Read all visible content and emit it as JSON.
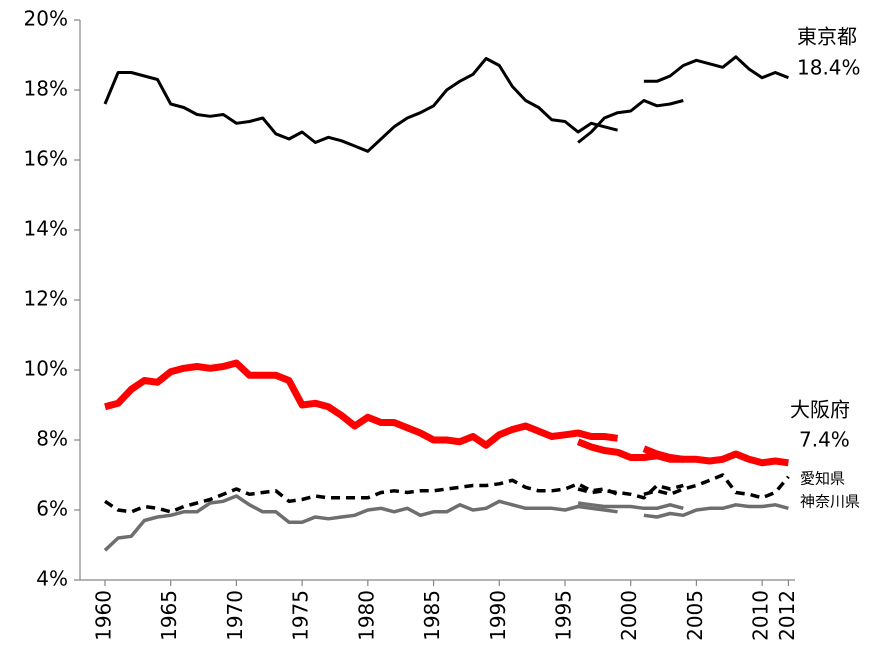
{
  "chart_data": {
    "type": "line",
    "xlim": [
      1958.1,
      2012.5
    ],
    "ylim": [
      4,
      20
    ],
    "xticks": [
      1960,
      1965,
      1970,
      1975,
      1980,
      1985,
      1990,
      1995,
      2000,
      2005,
      2010,
      2012
    ],
    "yticks": [
      {
        "value": 4,
        "label": "4%"
      },
      {
        "value": 6,
        "label": "6%"
      },
      {
        "value": 8,
        "label": "8%"
      },
      {
        "value": 10,
        "label": "10%"
      },
      {
        "value": 12,
        "label": "12%"
      },
      {
        "value": 14,
        "label": "14%"
      },
      {
        "value": 16,
        "label": "16%"
      },
      {
        "value": 18,
        "label": "18%"
      },
      {
        "value": 20,
        "label": "20%"
      }
    ],
    "grid": false,
    "annotations": [
      "18.4%",
      "7.4%"
    ],
    "series": [
      {
        "color": "#6e6e6e",
        "width": 3.5,
        "dash": false,
        "x": [
          1960,
          1961,
          1962,
          1963,
          1964,
          1965,
          1966,
          1967,
          1968,
          1969,
          1970,
          1971,
          1972,
          1973,
          1974,
          1975,
          1976,
          1977,
          1978,
          1979,
          1980,
          1981,
          1982,
          1983,
          1984,
          1985,
          1986,
          1987,
          1988,
          1989,
          1990,
          1991,
          1992,
          1993,
          1994,
          1995,
          1996,
          1997,
          1998,
          1999
        ],
        "values": [
          4.85,
          5.2,
          5.25,
          5.7,
          5.8,
          5.85,
          5.95,
          5.95,
          6.2,
          6.25,
          6.4,
          6.15,
          5.95,
          5.95,
          5.65,
          5.65,
          5.8,
          5.75,
          5.8,
          5.85,
          6.0,
          6.05,
          5.95,
          6.05,
          5.85,
          5.95,
          5.95,
          6.15,
          6.0,
          6.05,
          6.25,
          6.15,
          6.05,
          6.05,
          6.05,
          6.0,
          6.1,
          6.05,
          6.0,
          5.95
        ]
      },
      {
        "color": "#6e6e6e",
        "width": 3.5,
        "dash": false,
        "x": [
          1996,
          1997,
          1998,
          1999,
          2000,
          2001,
          2002,
          2003,
          2004
        ],
        "values": [
          6.2,
          6.15,
          6.1,
          6.1,
          6.1,
          6.05,
          6.05,
          6.15,
          6.05
        ]
      },
      {
        "name": "神奈川県",
        "color": "#6e6e6e",
        "width": 3.5,
        "dash": false,
        "x": [
          2001,
          2002,
          2003,
          2004,
          2005,
          2006,
          2007,
          2008,
          2009,
          2010,
          2011,
          2012
        ],
        "values": [
          5.85,
          5.8,
          5.9,
          5.85,
          6.0,
          6.05,
          6.05,
          6.15,
          6.1,
          6.1,
          6.15,
          6.05
        ]
      },
      {
        "color": "#000000",
        "width": 3.5,
        "dash": true,
        "x": [
          1960,
          1961,
          1962,
          1963,
          1964,
          1965,
          1966,
          1967,
          1968,
          1969,
          1970,
          1971,
          1972,
          1973,
          1974,
          1975,
          1976,
          1977,
          1978,
          1979,
          1980,
          1981,
          1982,
          1983,
          1984,
          1985,
          1986,
          1987,
          1988,
          1989,
          1990,
          1991,
          1992,
          1993,
          1994,
          1995,
          1996,
          1997,
          1998,
          1999
        ],
        "values": [
          6.25,
          6.0,
          5.95,
          6.1,
          6.05,
          5.95,
          6.1,
          6.2,
          6.3,
          6.45,
          6.6,
          6.45,
          6.5,
          6.55,
          6.25,
          6.3,
          6.4,
          6.35,
          6.35,
          6.35,
          6.35,
          6.5,
          6.55,
          6.5,
          6.55,
          6.55,
          6.6,
          6.65,
          6.7,
          6.7,
          6.75,
          6.85,
          6.65,
          6.55,
          6.55,
          6.6,
          6.75,
          6.55,
          6.6,
          6.45
        ]
      },
      {
        "color": "#000000",
        "width": 3.5,
        "dash": true,
        "x": [
          1996,
          1997,
          1998,
          1999,
          2000,
          2001,
          2002,
          2003,
          2004
        ],
        "values": [
          6.6,
          6.5,
          6.55,
          6.5,
          6.45,
          6.35,
          6.7,
          6.6,
          6.7
        ]
      },
      {
        "name": "愛知県",
        "color": "#000000",
        "width": 3.5,
        "dash": true,
        "x": [
          2001,
          2002,
          2003,
          2004,
          2005,
          2006,
          2007,
          2008,
          2009,
          2010,
          2011,
          2012
        ],
        "values": [
          6.45,
          6.55,
          6.45,
          6.6,
          6.7,
          6.85,
          7.0,
          6.5,
          6.45,
          6.35,
          6.5,
          6.95
        ]
      },
      {
        "color": "#ff0000",
        "width": 7,
        "dash": false,
        "x": [
          1960,
          1961,
          1962,
          1963,
          1964,
          1965,
          1966,
          1967,
          1968,
          1969,
          1970,
          1971,
          1972,
          1973,
          1974,
          1975,
          1976,
          1977,
          1978,
          1979,
          1980,
          1981,
          1982,
          1983,
          1984,
          1985,
          1986,
          1987,
          1988,
          1989,
          1990,
          1991,
          1992,
          1993,
          1994,
          1995,
          1996,
          1997,
          1998,
          1999
        ],
        "values": [
          8.95,
          9.05,
          9.45,
          9.7,
          9.65,
          9.95,
          10.05,
          10.1,
          10.05,
          10.1,
          10.2,
          9.85,
          9.85,
          9.85,
          9.7,
          9.0,
          9.05,
          8.95,
          8.7,
          8.4,
          8.65,
          8.5,
          8.5,
          8.35,
          8.2,
          8.0,
          8.0,
          7.95,
          8.1,
          7.85,
          8.15,
          8.3,
          8.4,
          8.25,
          8.1,
          8.15,
          8.2,
          8.1,
          8.1,
          8.05
        ]
      },
      {
        "color": "#ff0000",
        "width": 7,
        "dash": false,
        "x": [
          1996,
          1997,
          1998,
          1999,
          2000,
          2001,
          2002,
          2003,
          2004
        ],
        "values": [
          7.95,
          7.8,
          7.7,
          7.65,
          7.5,
          7.5,
          7.55,
          7.45,
          7.45
        ]
      },
      {
        "name": "大阪府",
        "color": "#ff0000",
        "width": 7,
        "dash": false,
        "x": [
          2001,
          2002,
          2003,
          2004,
          2005,
          2006,
          2007,
          2008,
          2009,
          2010,
          2011,
          2012
        ],
        "values": [
          7.75,
          7.6,
          7.5,
          7.45,
          7.45,
          7.4,
          7.45,
          7.6,
          7.45,
          7.35,
          7.4,
          7.35
        ]
      },
      {
        "color": "#000000",
        "width": 3,
        "dash": false,
        "x": [
          1960,
          1961,
          1962,
          1963,
          1964,
          1965,
          1966,
          1967,
          1968,
          1969,
          1970,
          1971,
          1972,
          1973,
          1974,
          1975,
          1976,
          1977,
          1978,
          1979,
          1980,
          1981,
          1982,
          1983,
          1984,
          1985,
          1986,
          1987,
          1988,
          1989,
          1990,
          1991,
          1992,
          1993,
          1994,
          1995,
          1996,
          1997,
          1998,
          1999
        ],
        "values": [
          17.6,
          18.5,
          18.5,
          18.4,
          18.3,
          17.6,
          17.5,
          17.3,
          17.25,
          17.3,
          17.05,
          17.1,
          17.2,
          16.75,
          16.6,
          16.8,
          16.5,
          16.65,
          16.55,
          16.4,
          16.25,
          16.6,
          16.95,
          17.2,
          17.35,
          17.55,
          18.0,
          18.25,
          18.45,
          18.9,
          18.7,
          18.1,
          17.7,
          17.5,
          17.15,
          17.1,
          16.8,
          17.05,
          16.95,
          16.85
        ]
      },
      {
        "color": "#000000",
        "width": 3,
        "dash": false,
        "x": [
          1996,
          1997,
          1998,
          1999,
          2000,
          2001,
          2002,
          2003,
          2004
        ],
        "values": [
          16.5,
          16.8,
          17.2,
          17.35,
          17.4,
          17.7,
          17.55,
          17.6,
          17.7
        ]
      },
      {
        "name": "東京都",
        "color": "#000000",
        "width": 3,
        "dash": false,
        "x": [
          2001,
          2002,
          2003,
          2004,
          2005,
          2006,
          2007,
          2008,
          2009,
          2010,
          2011,
          2012
        ],
        "values": [
          18.25,
          18.25,
          18.4,
          18.7,
          18.85,
          18.75,
          18.65,
          18.95,
          18.6,
          18.35,
          18.5,
          18.35
        ]
      }
    ]
  }
}
